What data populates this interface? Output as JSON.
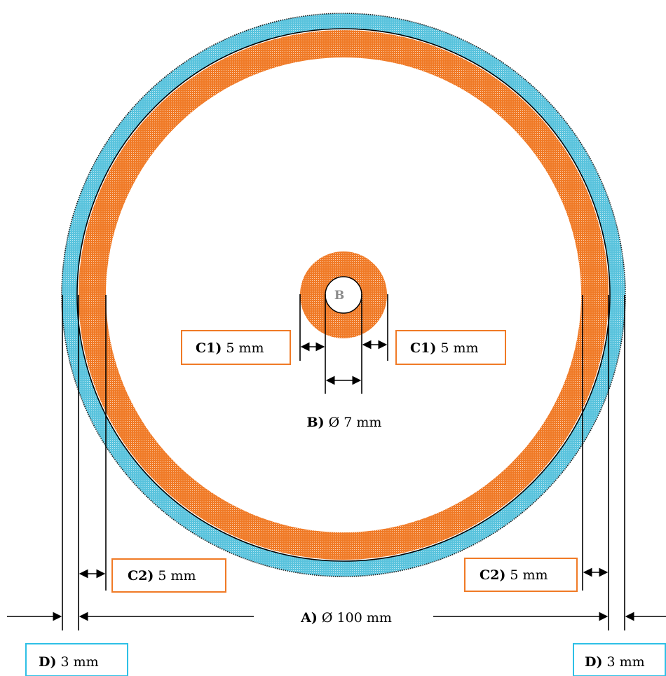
{
  "colors": {
    "orange": "#f07a26",
    "blue": "#59c3dd",
    "orange_box": "#f07a26",
    "blue_box": "#2ec0e6",
    "inner_b_text": "#8a8a8a"
  },
  "labels": {
    "inner_letter": "B",
    "c1_left": {
      "tag": "C1)",
      "text": " 5 mm"
    },
    "c1_right": {
      "tag": "C1)",
      "text": " 5 mm"
    },
    "b_dim": {
      "tag": "B)",
      "text": " Ø 7 mm"
    },
    "c2_left": {
      "tag": "C2)",
      "text": " 5 mm"
    },
    "c2_right": {
      "tag": "C2)",
      "text": " 5 mm"
    },
    "a_dim": {
      "tag": "A)",
      "text": " Ø 100 mm"
    },
    "d_left": {
      "tag": "D)",
      "text": " 3 mm"
    },
    "d_right": {
      "tag": "D)",
      "text": " 3 mm"
    }
  }
}
